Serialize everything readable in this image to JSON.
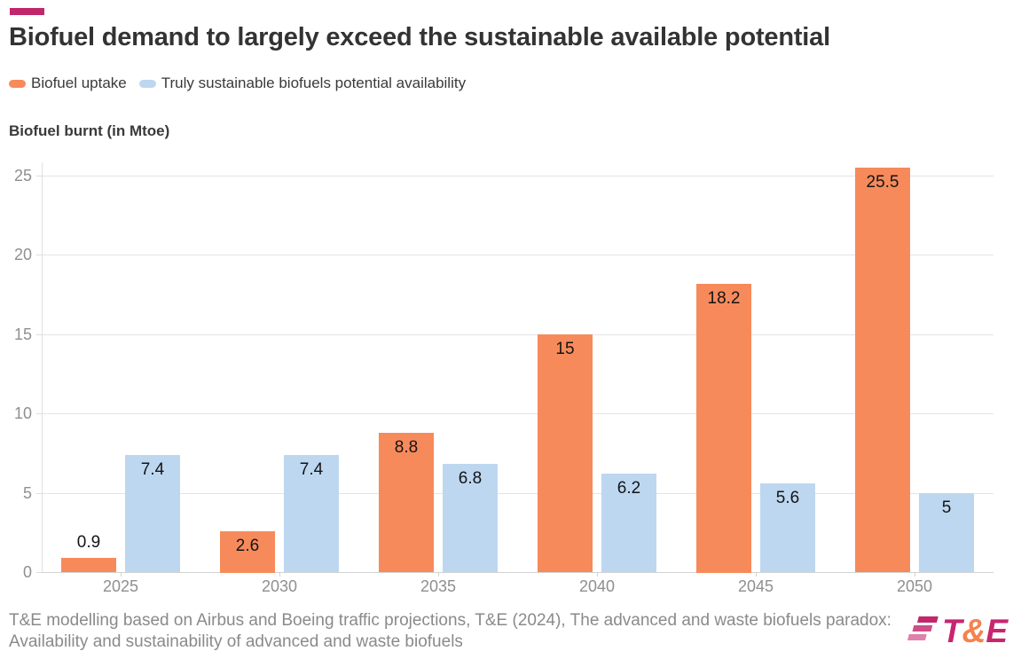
{
  "header": {
    "title": "Biofuel demand to largely exceed the sustainable available potential"
  },
  "legend": [
    {
      "label": "Biofuel uptake",
      "color": "#F78A5B"
    },
    {
      "label": "Truly sustainable biofuels potential availability",
      "color": "#BDD7F0"
    }
  ],
  "chart_data": {
    "type": "bar",
    "title": "Biofuel demand to largely exceed the sustainable available potential",
    "ylabel": "Biofuel burnt (in Mtoe)",
    "xlabel": "",
    "categories": [
      "2025",
      "2030",
      "2035",
      "2040",
      "2045",
      "2050"
    ],
    "series": [
      {
        "name": "Biofuel uptake",
        "color": "#F78A5B",
        "values": [
          0.9,
          2.6,
          8.8,
          15,
          18.2,
          25.5
        ]
      },
      {
        "name": "Truly sustainable biofuels potential availability",
        "color": "#BDD7F0",
        "values": [
          7.4,
          7.4,
          6.8,
          6.2,
          5.6,
          5
        ]
      }
    ],
    "yticks": [
      0,
      5,
      10,
      15,
      20,
      25
    ],
    "ylim": [
      0,
      26
    ],
    "grid": true,
    "legend_position": "top",
    "value_labels": true
  },
  "footer": {
    "source": "T&E modelling based on Airbus and Boeing traffic projections, T&E (2024), The advanced and waste biofuels paradox: Availability and sustainability of advanced and waste biofuels",
    "logo": {
      "t": "T",
      "amp": "&",
      "e": "E",
      "stripe_colors": [
        "#C1286C",
        "#CE4E87",
        "#DE82AB"
      ]
    }
  },
  "colors": {
    "accent_magenta": "#C1286C",
    "orange": "#F78A5B",
    "blue": "#BDD7F0",
    "logo_magenta": "#C9256F",
    "logo_orange": "#F5824E",
    "title_text": "#333333",
    "muted_text": "#8a8a8a"
  }
}
